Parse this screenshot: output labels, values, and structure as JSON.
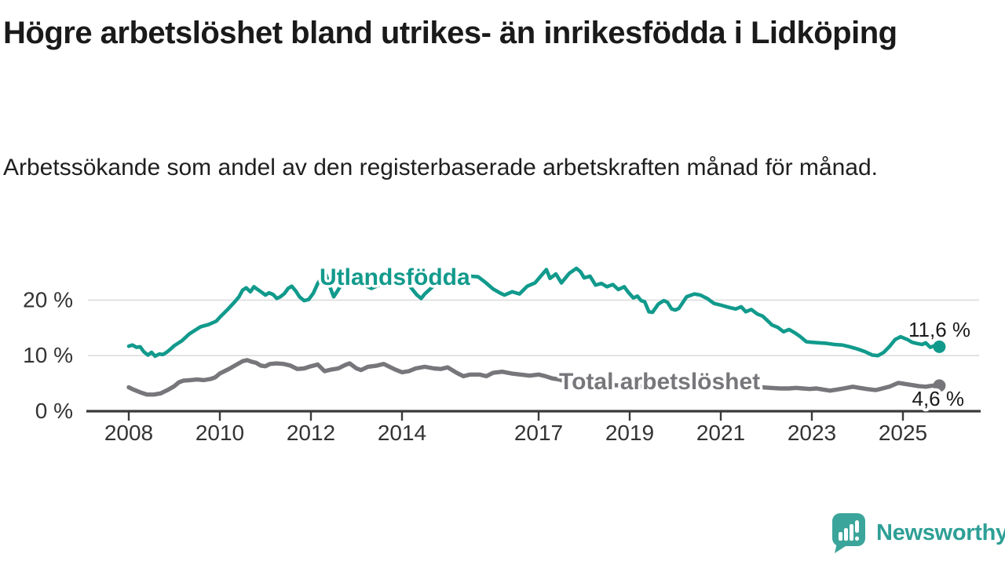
{
  "header": {
    "title": "Högre arbetslöshet bland utrikes- än inrikesfödda i Lidköping",
    "subtitle": "Arbetssökande som andel av den registerbaserade arbetskraften månad för månad."
  },
  "chart_data": {
    "type": "line",
    "title": "Högre arbetslöshet bland utrikes- än inrikesfödda i Lidköping",
    "subtitle": "Arbetssökande som andel av den registerbaserade arbetskraften månad för månad.",
    "x_axis": {
      "unit": "year",
      "range": [
        2007.1,
        2026.8
      ],
      "ticks": [
        {
          "label": "2008",
          "year": 2008
        },
        {
          "label": "2010",
          "year": 2010
        },
        {
          "label": "2012",
          "year": 2012
        },
        {
          "label": "2014",
          "year": 2014
        },
        {
          "label": "2017",
          "year": 2017
        },
        {
          "label": "2019",
          "year": 2019
        },
        {
          "label": "2021",
          "year": 2021
        },
        {
          "label": "2023",
          "year": 2023
        },
        {
          "label": "2025",
          "year": 2025
        }
      ]
    },
    "y_axis": {
      "unit": "%",
      "range": [
        0,
        27
      ],
      "ticks": [
        0,
        10,
        20
      ],
      "tick_labels": [
        "0 %",
        "10 %",
        "20 %"
      ],
      "grid": true
    },
    "legend_position": "inline-labels",
    "series": [
      {
        "name": "Utlandsfödda",
        "color": "#119a8c",
        "width": 4.6,
        "end_label": "11,6 %",
        "end_value": 11.6,
        "points": [
          [
            2008.0,
            11.7
          ],
          [
            2008.08,
            11.9
          ],
          [
            2008.17,
            11.5
          ],
          [
            2008.25,
            11.6
          ],
          [
            2008.33,
            10.7
          ],
          [
            2008.42,
            10.1
          ],
          [
            2008.5,
            10.6
          ],
          [
            2008.58,
            9.9
          ],
          [
            2008.67,
            10.3
          ],
          [
            2008.75,
            10.2
          ],
          [
            2008.83,
            10.6
          ],
          [
            2008.92,
            11.2
          ],
          [
            2009.0,
            11.8
          ],
          [
            2009.17,
            12.7
          ],
          [
            2009.33,
            13.9
          ],
          [
            2009.5,
            14.8
          ],
          [
            2009.58,
            15.2
          ],
          [
            2009.75,
            15.6
          ],
          [
            2009.92,
            16.2
          ],
          [
            2010.0,
            16.9
          ],
          [
            2010.17,
            18.3
          ],
          [
            2010.33,
            19.7
          ],
          [
            2010.42,
            20.6
          ],
          [
            2010.5,
            21.8
          ],
          [
            2010.58,
            22.2
          ],
          [
            2010.67,
            21.5
          ],
          [
            2010.75,
            22.4
          ],
          [
            2010.83,
            21.9
          ],
          [
            2010.92,
            21.4
          ],
          [
            2011.0,
            20.9
          ],
          [
            2011.08,
            21.3
          ],
          [
            2011.17,
            21.0
          ],
          [
            2011.25,
            20.3
          ],
          [
            2011.33,
            20.6
          ],
          [
            2011.42,
            21.2
          ],
          [
            2011.5,
            22.1
          ],
          [
            2011.58,
            22.5
          ],
          [
            2011.67,
            21.6
          ],
          [
            2011.75,
            20.6
          ],
          [
            2011.85,
            19.9
          ],
          [
            2011.95,
            20.1
          ],
          [
            2012.05,
            21.2
          ],
          [
            2012.15,
            23.0
          ],
          [
            2012.25,
            24.2
          ],
          [
            2012.33,
            24.6
          ],
          [
            2012.42,
            22.3
          ],
          [
            2012.5,
            20.6
          ],
          [
            2012.58,
            21.6
          ],
          [
            2012.67,
            22.8
          ],
          [
            2012.83,
            23.5
          ],
          [
            2013.0,
            23.1
          ],
          [
            2013.17,
            22.7
          ],
          [
            2013.33,
            22.1
          ],
          [
            2013.5,
            22.7
          ],
          [
            2013.67,
            23.3
          ],
          [
            2013.83,
            23.8
          ],
          [
            2014.0,
            23.2
          ],
          [
            2014.17,
            22.5
          ],
          [
            2014.33,
            20.9
          ],
          [
            2014.42,
            20.3
          ],
          [
            2014.5,
            21.1
          ],
          [
            2014.67,
            22.4
          ],
          [
            2014.83,
            23.2
          ],
          [
            2015.0,
            23.0
          ],
          [
            2015.17,
            23.2
          ],
          [
            2015.33,
            23.8
          ],
          [
            2015.5,
            24.3
          ],
          [
            2015.67,
            24.2
          ],
          [
            2015.83,
            23.2
          ],
          [
            2016.0,
            22.0
          ],
          [
            2016.17,
            21.2
          ],
          [
            2016.25,
            20.9
          ],
          [
            2016.42,
            21.5
          ],
          [
            2016.58,
            21.1
          ],
          [
            2016.75,
            22.5
          ],
          [
            2016.92,
            23.1
          ],
          [
            2017.08,
            24.6
          ],
          [
            2017.17,
            25.5
          ],
          [
            2017.25,
            23.9
          ],
          [
            2017.38,
            24.7
          ],
          [
            2017.5,
            23.1
          ],
          [
            2017.67,
            24.8
          ],
          [
            2017.83,
            25.7
          ],
          [
            2017.92,
            25.1
          ],
          [
            2018.0,
            24.0
          ],
          [
            2018.13,
            24.3
          ],
          [
            2018.25,
            22.7
          ],
          [
            2018.38,
            23.0
          ],
          [
            2018.5,
            22.4
          ],
          [
            2018.63,
            22.8
          ],
          [
            2018.75,
            21.9
          ],
          [
            2018.88,
            22.4
          ],
          [
            2018.96,
            21.5
          ],
          [
            2019.08,
            20.4
          ],
          [
            2019.17,
            20.7
          ],
          [
            2019.25,
            19.9
          ],
          [
            2019.33,
            19.7
          ],
          [
            2019.42,
            17.9
          ],
          [
            2019.5,
            17.8
          ],
          [
            2019.63,
            19.3
          ],
          [
            2019.75,
            19.9
          ],
          [
            2019.83,
            19.6
          ],
          [
            2019.92,
            18.4
          ],
          [
            2020.0,
            18.2
          ],
          [
            2020.08,
            18.5
          ],
          [
            2020.25,
            20.6
          ],
          [
            2020.42,
            21.1
          ],
          [
            2020.55,
            20.9
          ],
          [
            2020.7,
            20.3
          ],
          [
            2020.85,
            19.4
          ],
          [
            2021.0,
            19.1
          ],
          [
            2021.17,
            18.7
          ],
          [
            2021.33,
            18.4
          ],
          [
            2021.45,
            18.8
          ],
          [
            2021.55,
            17.9
          ],
          [
            2021.67,
            18.3
          ],
          [
            2021.8,
            17.5
          ],
          [
            2021.92,
            17.1
          ],
          [
            2022.0,
            16.5
          ],
          [
            2022.13,
            15.5
          ],
          [
            2022.25,
            15.1
          ],
          [
            2022.38,
            14.3
          ],
          [
            2022.5,
            14.7
          ],
          [
            2022.63,
            14.1
          ],
          [
            2022.75,
            13.4
          ],
          [
            2022.88,
            12.5
          ],
          [
            2023.0,
            12.4
          ],
          [
            2023.17,
            12.3
          ],
          [
            2023.33,
            12.2
          ],
          [
            2023.5,
            12.0
          ],
          [
            2023.67,
            11.9
          ],
          [
            2023.83,
            11.6
          ],
          [
            2024.0,
            11.2
          ],
          [
            2024.17,
            10.7
          ],
          [
            2024.33,
            10.1
          ],
          [
            2024.45,
            10.0
          ],
          [
            2024.58,
            10.6
          ],
          [
            2024.7,
            11.6
          ],
          [
            2024.83,
            12.9
          ],
          [
            2024.95,
            13.4
          ],
          [
            2025.1,
            12.9
          ],
          [
            2025.2,
            12.4
          ],
          [
            2025.3,
            12.2
          ],
          [
            2025.42,
            12.0
          ],
          [
            2025.5,
            12.3
          ],
          [
            2025.6,
            11.5
          ],
          [
            2025.7,
            11.8
          ],
          [
            2025.8,
            11.6
          ]
        ]
      },
      {
        "name": "Total arbetslöshet",
        "color": "#77777b",
        "width": 5.4,
        "end_label": "4,6 %",
        "end_value": 4.6,
        "points": [
          [
            2008.0,
            4.3
          ],
          [
            2008.1,
            3.9
          ],
          [
            2008.25,
            3.4
          ],
          [
            2008.4,
            3.0
          ],
          [
            2008.55,
            3.0
          ],
          [
            2008.7,
            3.2
          ],
          [
            2008.85,
            3.8
          ],
          [
            2009.0,
            4.5
          ],
          [
            2009.1,
            5.2
          ],
          [
            2009.2,
            5.5
          ],
          [
            2009.35,
            5.6
          ],
          [
            2009.5,
            5.7
          ],
          [
            2009.65,
            5.6
          ],
          [
            2009.8,
            5.8
          ],
          [
            2009.9,
            6.1
          ],
          [
            2010.0,
            6.8
          ],
          [
            2010.2,
            7.6
          ],
          [
            2010.35,
            8.3
          ],
          [
            2010.5,
            9.0
          ],
          [
            2010.6,
            9.2
          ],
          [
            2010.7,
            8.9
          ],
          [
            2010.8,
            8.7
          ],
          [
            2010.9,
            8.2
          ],
          [
            2011.0,
            8.1
          ],
          [
            2011.1,
            8.5
          ],
          [
            2011.25,
            8.6
          ],
          [
            2011.4,
            8.5
          ],
          [
            2011.55,
            8.2
          ],
          [
            2011.7,
            7.6
          ],
          [
            2011.85,
            7.7
          ],
          [
            2012.0,
            8.1
          ],
          [
            2012.15,
            8.4
          ],
          [
            2012.3,
            7.2
          ],
          [
            2012.45,
            7.5
          ],
          [
            2012.6,
            7.7
          ],
          [
            2012.75,
            8.3
          ],
          [
            2012.85,
            8.6
          ],
          [
            2013.0,
            7.7
          ],
          [
            2013.1,
            7.4
          ],
          [
            2013.25,
            8.0
          ],
          [
            2013.45,
            8.2
          ],
          [
            2013.6,
            8.5
          ],
          [
            2013.7,
            8.1
          ],
          [
            2013.85,
            7.5
          ],
          [
            2014.0,
            7.0
          ],
          [
            2014.15,
            7.2
          ],
          [
            2014.3,
            7.7
          ],
          [
            2014.5,
            8.0
          ],
          [
            2014.7,
            7.7
          ],
          [
            2014.85,
            7.6
          ],
          [
            2015.0,
            7.9
          ],
          [
            2015.2,
            6.9
          ],
          [
            2015.35,
            6.3
          ],
          [
            2015.5,
            6.6
          ],
          [
            2015.7,
            6.6
          ],
          [
            2015.85,
            6.3
          ],
          [
            2016.0,
            6.9
          ],
          [
            2016.2,
            7.1
          ],
          [
            2016.4,
            6.8
          ],
          [
            2016.6,
            6.6
          ],
          [
            2016.8,
            6.4
          ],
          [
            2017.0,
            6.6
          ],
          [
            2017.15,
            6.3
          ],
          [
            2017.3,
            5.9
          ],
          [
            2017.45,
            5.7
          ],
          [
            2017.6,
            5.3
          ],
          [
            2017.8,
            5.1
          ],
          [
            2018.0,
            5.0
          ],
          [
            2018.3,
            4.9
          ],
          [
            2018.6,
            4.7
          ],
          [
            2018.9,
            4.6
          ],
          [
            2019.2,
            4.5
          ],
          [
            2019.5,
            4.4
          ],
          [
            2019.8,
            4.6
          ],
          [
            2020.1,
            5.3
          ],
          [
            2020.4,
            5.6
          ],
          [
            2020.7,
            5.4
          ],
          [
            2021.0,
            5.1
          ],
          [
            2021.3,
            4.8
          ],
          [
            2021.6,
            4.5
          ],
          [
            2021.9,
            4.3
          ],
          [
            2022.1,
            4.2
          ],
          [
            2022.3,
            4.1
          ],
          [
            2022.5,
            4.1
          ],
          [
            2022.65,
            4.2
          ],
          [
            2022.8,
            4.1
          ],
          [
            2022.95,
            4.0
          ],
          [
            2023.1,
            4.1
          ],
          [
            2023.25,
            3.9
          ],
          [
            2023.4,
            3.7
          ],
          [
            2023.55,
            3.9
          ],
          [
            2023.7,
            4.1
          ],
          [
            2023.9,
            4.4
          ],
          [
            2024.05,
            4.2
          ],
          [
            2024.2,
            4.0
          ],
          [
            2024.4,
            3.8
          ],
          [
            2024.55,
            4.1
          ],
          [
            2024.7,
            4.4
          ],
          [
            2024.9,
            5.1
          ],
          [
            2025.05,
            4.9
          ],
          [
            2025.2,
            4.7
          ],
          [
            2025.35,
            4.5
          ],
          [
            2025.5,
            4.4
          ],
          [
            2025.65,
            4.6
          ],
          [
            2025.8,
            4.6
          ]
        ]
      }
    ]
  },
  "footer": {
    "brand": "Newsworthy",
    "brand_color": "#2d9f95"
  }
}
